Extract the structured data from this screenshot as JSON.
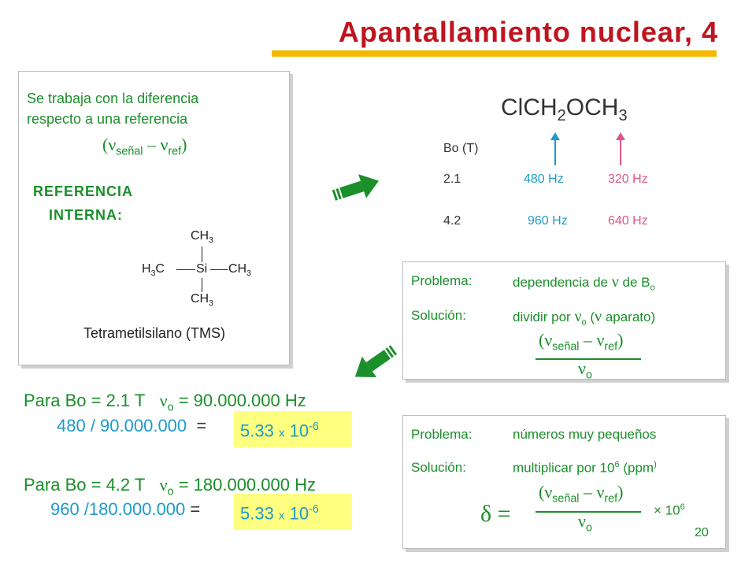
{
  "title": "Apantallamiento nuclear, 4",
  "left_box": {
    "line1": "Se trabaja con la diferencia",
    "line2": "respecto a una referencia",
    "referencia": "REFERENCIA",
    "interna": "INTERNA:",
    "tms_caption": "Tetrametilsilano (TMS)",
    "tms": {
      "top": "CH",
      "left": "H",
      "left2": "C",
      "center": "Si",
      "right": "CH",
      "bottom": "CH",
      "sub": "3"
    }
  },
  "formula": {
    "nu": "ν",
    "senal": "señal",
    "ref": "ref",
    "o": "o",
    "minus": "–"
  },
  "molecule": {
    "p1": "ClCH",
    "s1": "2",
    "p2": "OCH",
    "s2": "3"
  },
  "freq_table": {
    "header": "Bo (T)",
    "rows": [
      {
        "bo": "2.1",
        "ch2": "480 Hz",
        "ch3": "320 Hz"
      },
      {
        "bo": "4.2",
        "ch2": "960 Hz",
        "ch3": "640 Hz"
      }
    ]
  },
  "problem1": {
    "problema_label": "Problema:",
    "problema_text": "dependencia de",
    "de": "de B",
    "solucion_label": "Solución:",
    "solucion_text": "dividir por",
    "aparato": "aparato)"
  },
  "problem2": {
    "problema_label": "Problema:",
    "problema_text": "números muy pequeños",
    "solucion_label": "Solución:",
    "solucion_text": "multiplicar por 10",
    "exp": "6",
    "ppm": "(ppm",
    "delta": "δ =",
    "times": "× 10",
    "times_exp": "6"
  },
  "calc": {
    "line1_a": "Para Bo = 2.1 T",
    "line1_b": "= 90.000.000 Hz",
    "line2_a": "480 / 90.000.000",
    "line2_eq": "=",
    "line2_res": "5.33",
    "x": "x",
    "ten": "10",
    "exp": "-6",
    "line3_a": "Para Bo = 4.2 T",
    "line3_b": "= 180.000.000 Hz",
    "line4_a": "960 /180.000.000",
    "line4_eq": "="
  },
  "page_number": "20",
  "colors": {
    "title": "#c0141e",
    "underline": "#f5b800",
    "green": "#1a8f2a",
    "blue": "#1e9bc8",
    "pink": "#e0568c",
    "highlight": "#ffff80"
  }
}
